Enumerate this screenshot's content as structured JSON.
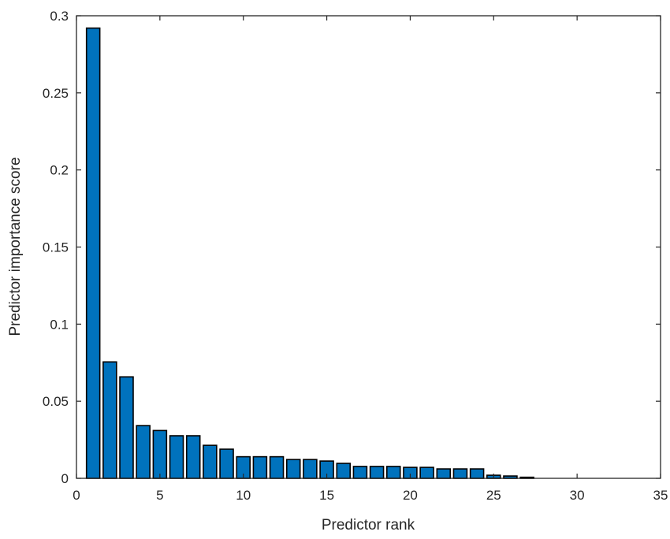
{
  "chart_data": {
    "type": "bar",
    "title": "",
    "xlabel": "Predictor rank",
    "ylabel": "Predictor importance score",
    "xlim": [
      0,
      35
    ],
    "ylim": [
      0,
      0.3
    ],
    "xticks": [
      0,
      5,
      10,
      15,
      20,
      25,
      30,
      35
    ],
    "xtick_labels": [
      "0",
      "5",
      "10",
      "15",
      "20",
      "25",
      "30",
      "35"
    ],
    "yticks": [
      0,
      0.05,
      0.1,
      0.15,
      0.2,
      0.25,
      0.3
    ],
    "ytick_labels": [
      "0",
      "0.05",
      "0.1",
      "0.15",
      "0.2",
      "0.25",
      "0.3"
    ],
    "grid": false,
    "legend": null,
    "bar_color": "#0072BD",
    "bar_edge_color": "#000000",
    "bar_width": 0.8,
    "categories": [
      1,
      2,
      3,
      4,
      5,
      6,
      7,
      8,
      9,
      10,
      11,
      12,
      13,
      14,
      15,
      16,
      17,
      18,
      19,
      20,
      21,
      22,
      23,
      24,
      25,
      26,
      27,
      28,
      29,
      30,
      31,
      32,
      33,
      34
    ],
    "values": [
      0.292,
      0.0755,
      0.0658,
      0.0342,
      0.031,
      0.0276,
      0.0276,
      0.0214,
      0.0189,
      0.014,
      0.014,
      0.014,
      0.0122,
      0.0122,
      0.0112,
      0.0097,
      0.0077,
      0.0077,
      0.0077,
      0.0071,
      0.0071,
      0.0061,
      0.0061,
      0.0061,
      0.002,
      0.0015,
      0.0007,
      0,
      0,
      0,
      0,
      0,
      0,
      0
    ]
  }
}
